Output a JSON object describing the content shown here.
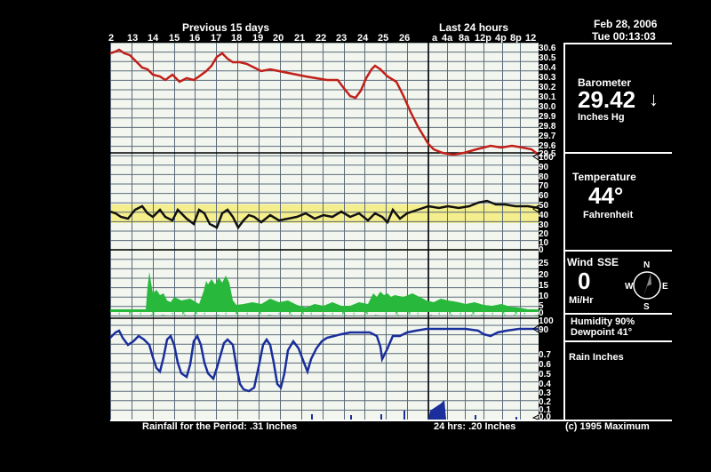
{
  "header": {
    "previous_label": "Previous 15 days",
    "last24_label": "Last 24 hours",
    "date": "Feb 28, 2006",
    "time": "Tue 00:13:03",
    "day_ticks": [
      "2",
      "13",
      "14",
      "15",
      "16",
      "17",
      "18",
      "19",
      "20",
      "21",
      "22",
      "23",
      "24",
      "25",
      "26"
    ],
    "hour_ticks": [
      "a",
      "4a",
      "8a",
      "12p",
      "4p",
      "8p",
      "12"
    ]
  },
  "scales": {
    "barometer": [
      "30.6",
      "30.5",
      "30.4",
      "30.3",
      "30.2",
      "30.1",
      "30.0",
      "29.9",
      "29.8",
      "29.7",
      "29.6",
      "29.5"
    ],
    "temperature": [
      "100",
      "90",
      "80",
      "70",
      "60",
      "50",
      "40",
      "30",
      "20",
      "10",
      "0"
    ],
    "wind": [
      "25",
      "20",
      "15",
      "10",
      "5",
      "0"
    ],
    "humidity": [
      "100",
      "90"
    ],
    "rain": [
      "0.7",
      "0.6",
      "0.5",
      "0.4",
      "0.3",
      "0.2",
      "0.1",
      "0.0"
    ]
  },
  "barometer": {
    "title": "Barometer",
    "value": "29.42",
    "trend_glyph": "↓",
    "unit": "Inches Hg"
  },
  "temperature": {
    "title": "Temperature",
    "value": "44°",
    "unit": "Fahrenheit"
  },
  "wind": {
    "title": "Wind",
    "direction": "SSE",
    "value": "0",
    "unit": "Mi/Hr",
    "compass": {
      "n": "N",
      "e": "E",
      "s": "S",
      "w": "W"
    }
  },
  "humidity": {
    "line1": "Humidity 90%",
    "line2": "Dewpoint 41°"
  },
  "rain": {
    "title": "Rain Inches"
  },
  "footer": {
    "period": "Rainfall for the Period: .31 Inches",
    "last24": "24 hrs: .20 Inches",
    "copyright": "(c) 1995 Maximum"
  },
  "colors": {
    "pressure": "#c0201a",
    "temp": "#111111",
    "comfort_band": "#f4ee8c",
    "wind": "#28b83c",
    "humidity": "#1a2e9c",
    "rain": "#1a2e9c",
    "grid": "#5a6a7a",
    "chart_bg": "#f2f6ee"
  }
}
